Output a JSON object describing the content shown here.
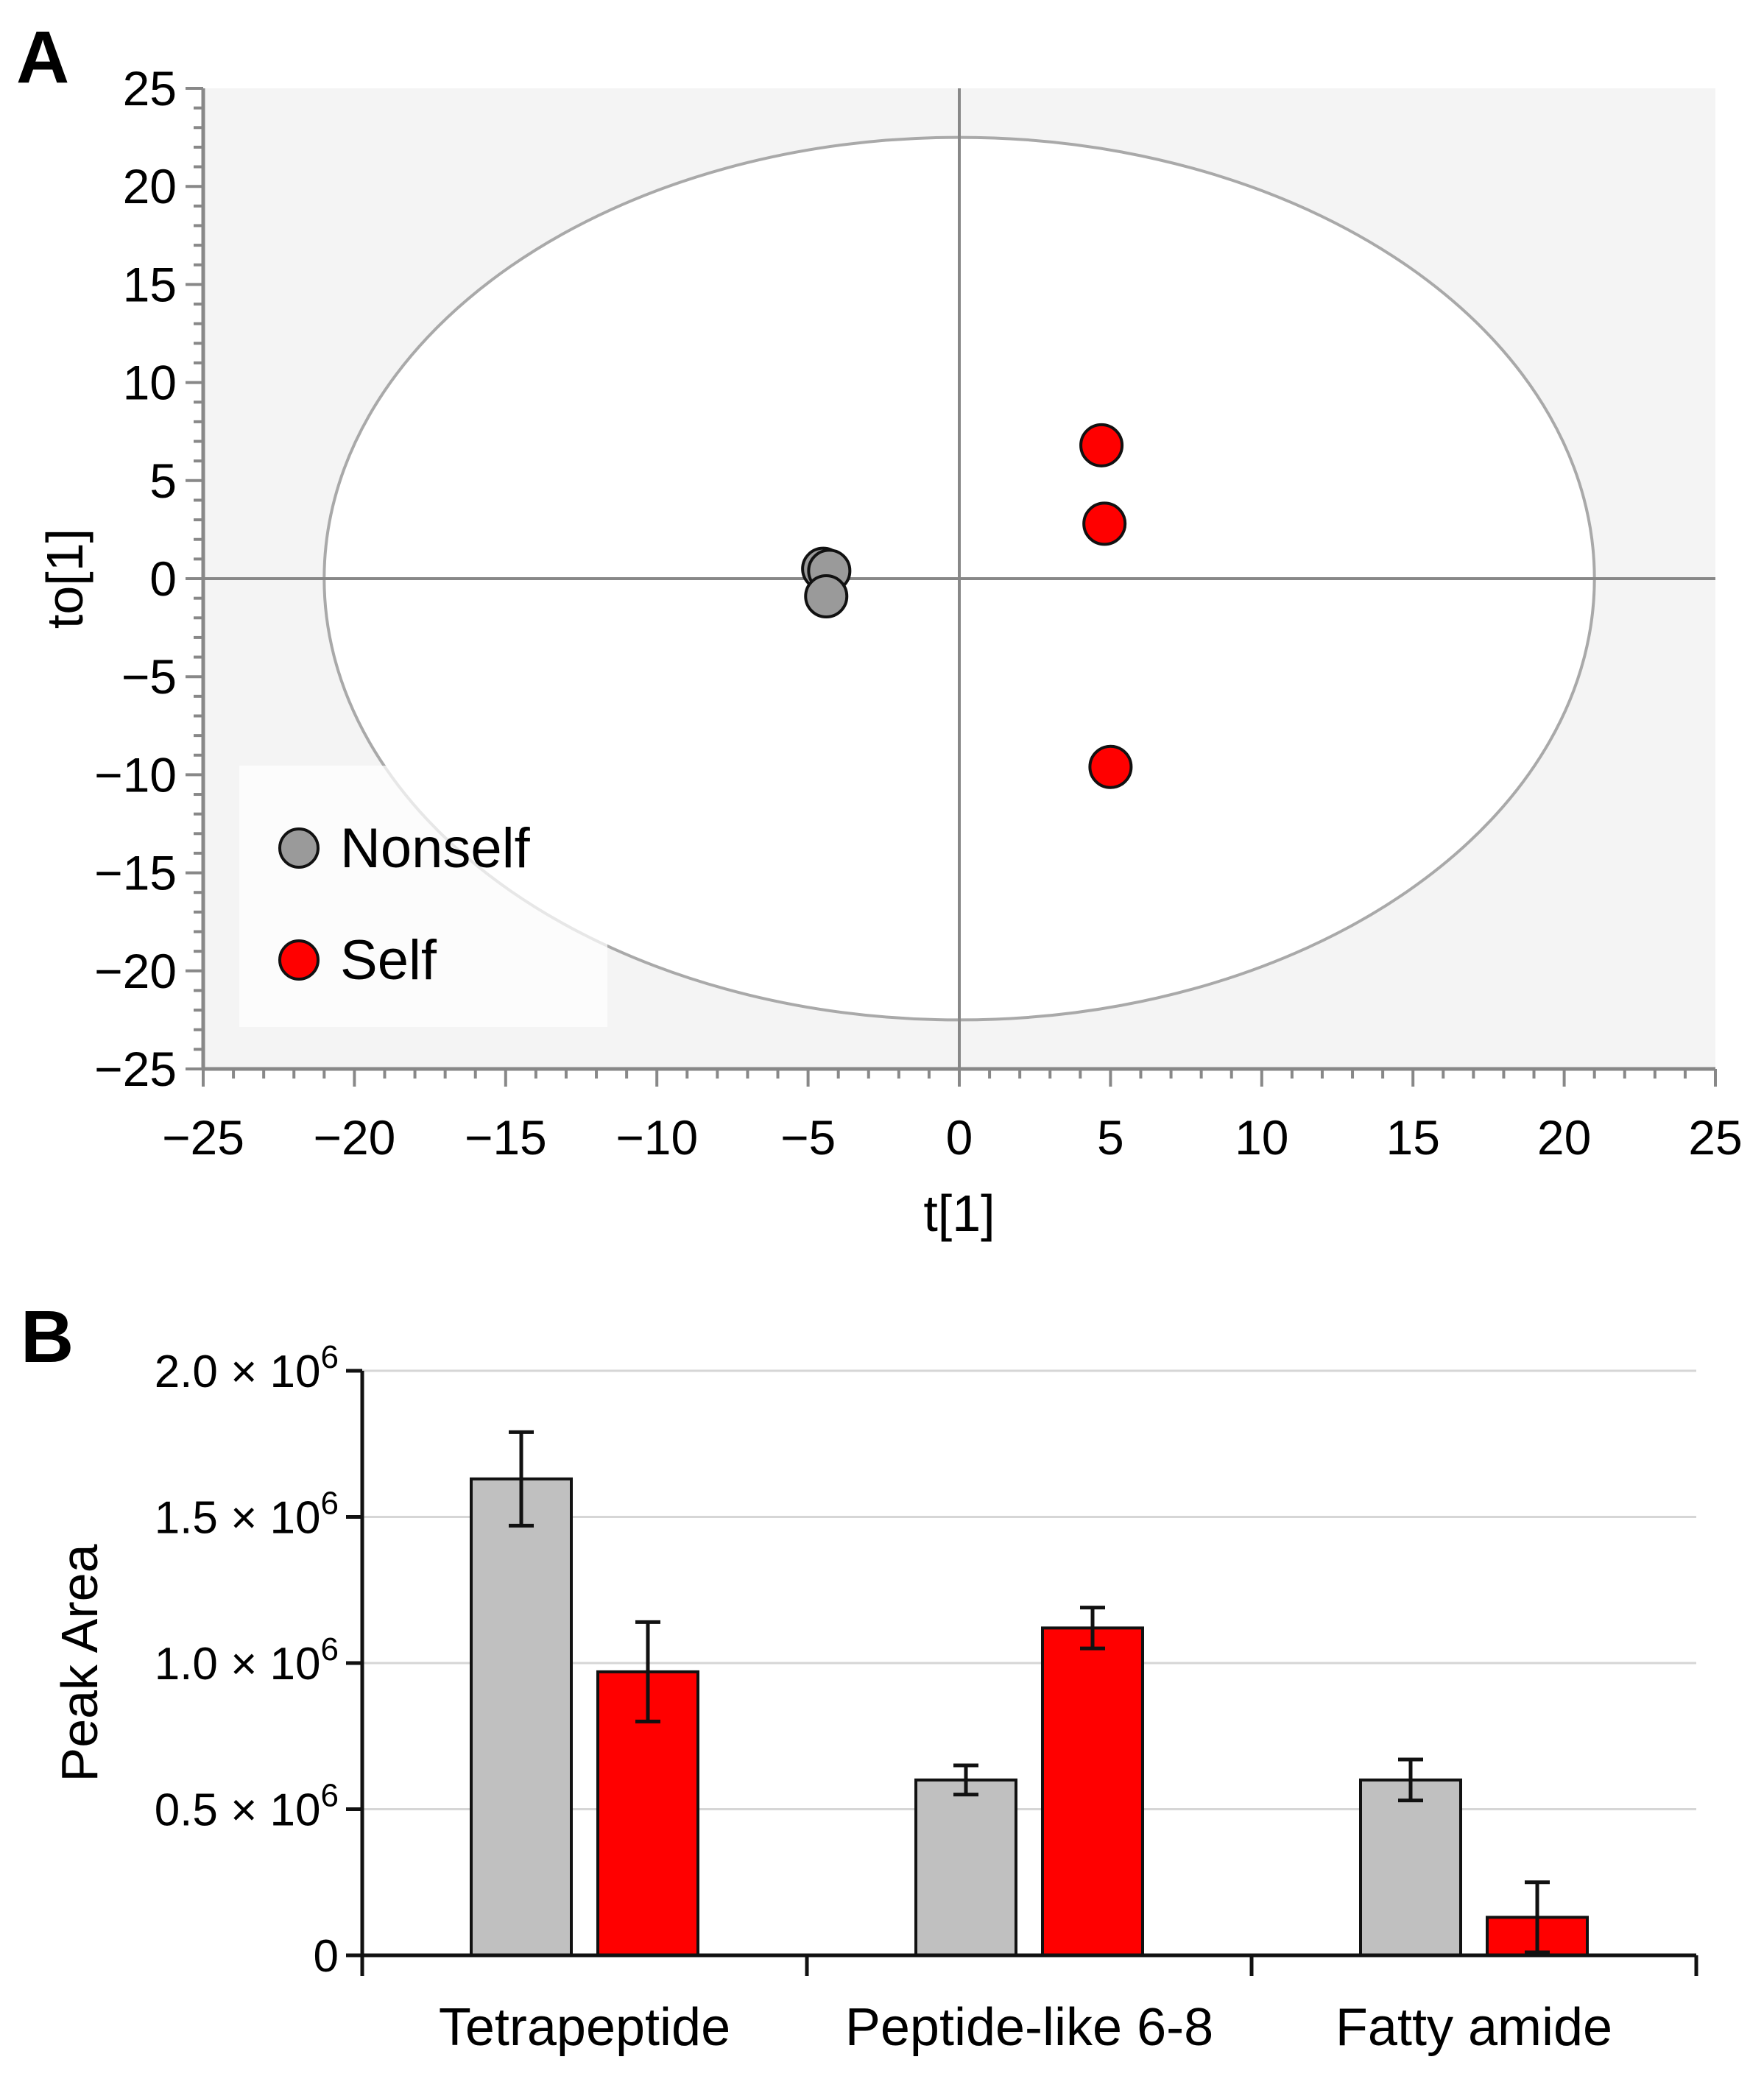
{
  "panels": {
    "a": {
      "letter": "A"
    },
    "b": {
      "letter": "B"
    }
  },
  "legend": {
    "nonself": "Nonself",
    "self": "Self"
  },
  "colors": {
    "nonself_point": "#9a9a9a",
    "self": "#ff0000",
    "nonself_bar": "#c0c0c0",
    "plot_bg": "#f4f4f4",
    "axis": "#888888",
    "ellipse": "#a9a9a9"
  },
  "chart_data": [
    {
      "id": "scores",
      "type": "scatter",
      "title": "",
      "xlabel": "t[1]",
      "ylabel": "to[1]",
      "xlim": [
        -25,
        25
      ],
      "ylim": [
        -25,
        25
      ],
      "xticks": [
        -25,
        -20,
        -15,
        -10,
        -5,
        0,
        5,
        10,
        15,
        20,
        25
      ],
      "yticks": [
        25,
        20,
        15,
        10,
        5,
        0,
        -5,
        -10,
        -15,
        -20,
        -25
      ],
      "xtick_labels": [
        "−25",
        "−20",
        "−15",
        "−10",
        "−5",
        "0",
        "5",
        "10",
        "15",
        "20",
        "25"
      ],
      "ytick_labels": [
        "25",
        "20",
        "15",
        "10",
        "5",
        "0",
        "−5",
        "−10",
        "−15",
        "−20",
        "−25"
      ],
      "ellipse": {
        "rx": 21,
        "ry": 22.5
      },
      "legend_position": "bottom-left",
      "series": [
        {
          "name": "Nonself",
          "points": [
            [
              -4.5,
              0.5
            ],
            [
              -4.3,
              0.4
            ],
            [
              -4.4,
              -0.9
            ]
          ]
        },
        {
          "name": "Self",
          "points": [
            [
              4.7,
              6.8
            ],
            [
              4.8,
              2.8
            ],
            [
              5.0,
              -9.6
            ]
          ]
        }
      ]
    },
    {
      "id": "peak-area",
      "type": "bar",
      "title": "",
      "xlabel": "",
      "ylabel": "Peak Area",
      "ylim": [
        0,
        2000000
      ],
      "yticks": [
        0,
        500000,
        1000000,
        1500000,
        2000000
      ],
      "ytick_labels": [
        {
          "base": "0",
          "exp": ""
        },
        {
          "base": "0.5 × 10",
          "exp": "6"
        },
        {
          "base": "1.0 × 10",
          "exp": "6"
        },
        {
          "base": "1.5 × 10",
          "exp": "6"
        },
        {
          "base": "2.0 × 10",
          "exp": "6"
        }
      ],
      "categories": [
        "Tetrapeptide",
        "Peptide-like 6-8",
        "Fatty amide"
      ],
      "series": [
        {
          "name": "Nonself",
          "values": [
            1630000,
            600000,
            600000
          ],
          "errors": [
            160000,
            50000,
            70000
          ]
        },
        {
          "name": "Self",
          "values": [
            970000,
            1120000,
            130000
          ],
          "errors": [
            170000,
            70000,
            120000
          ]
        }
      ]
    }
  ]
}
